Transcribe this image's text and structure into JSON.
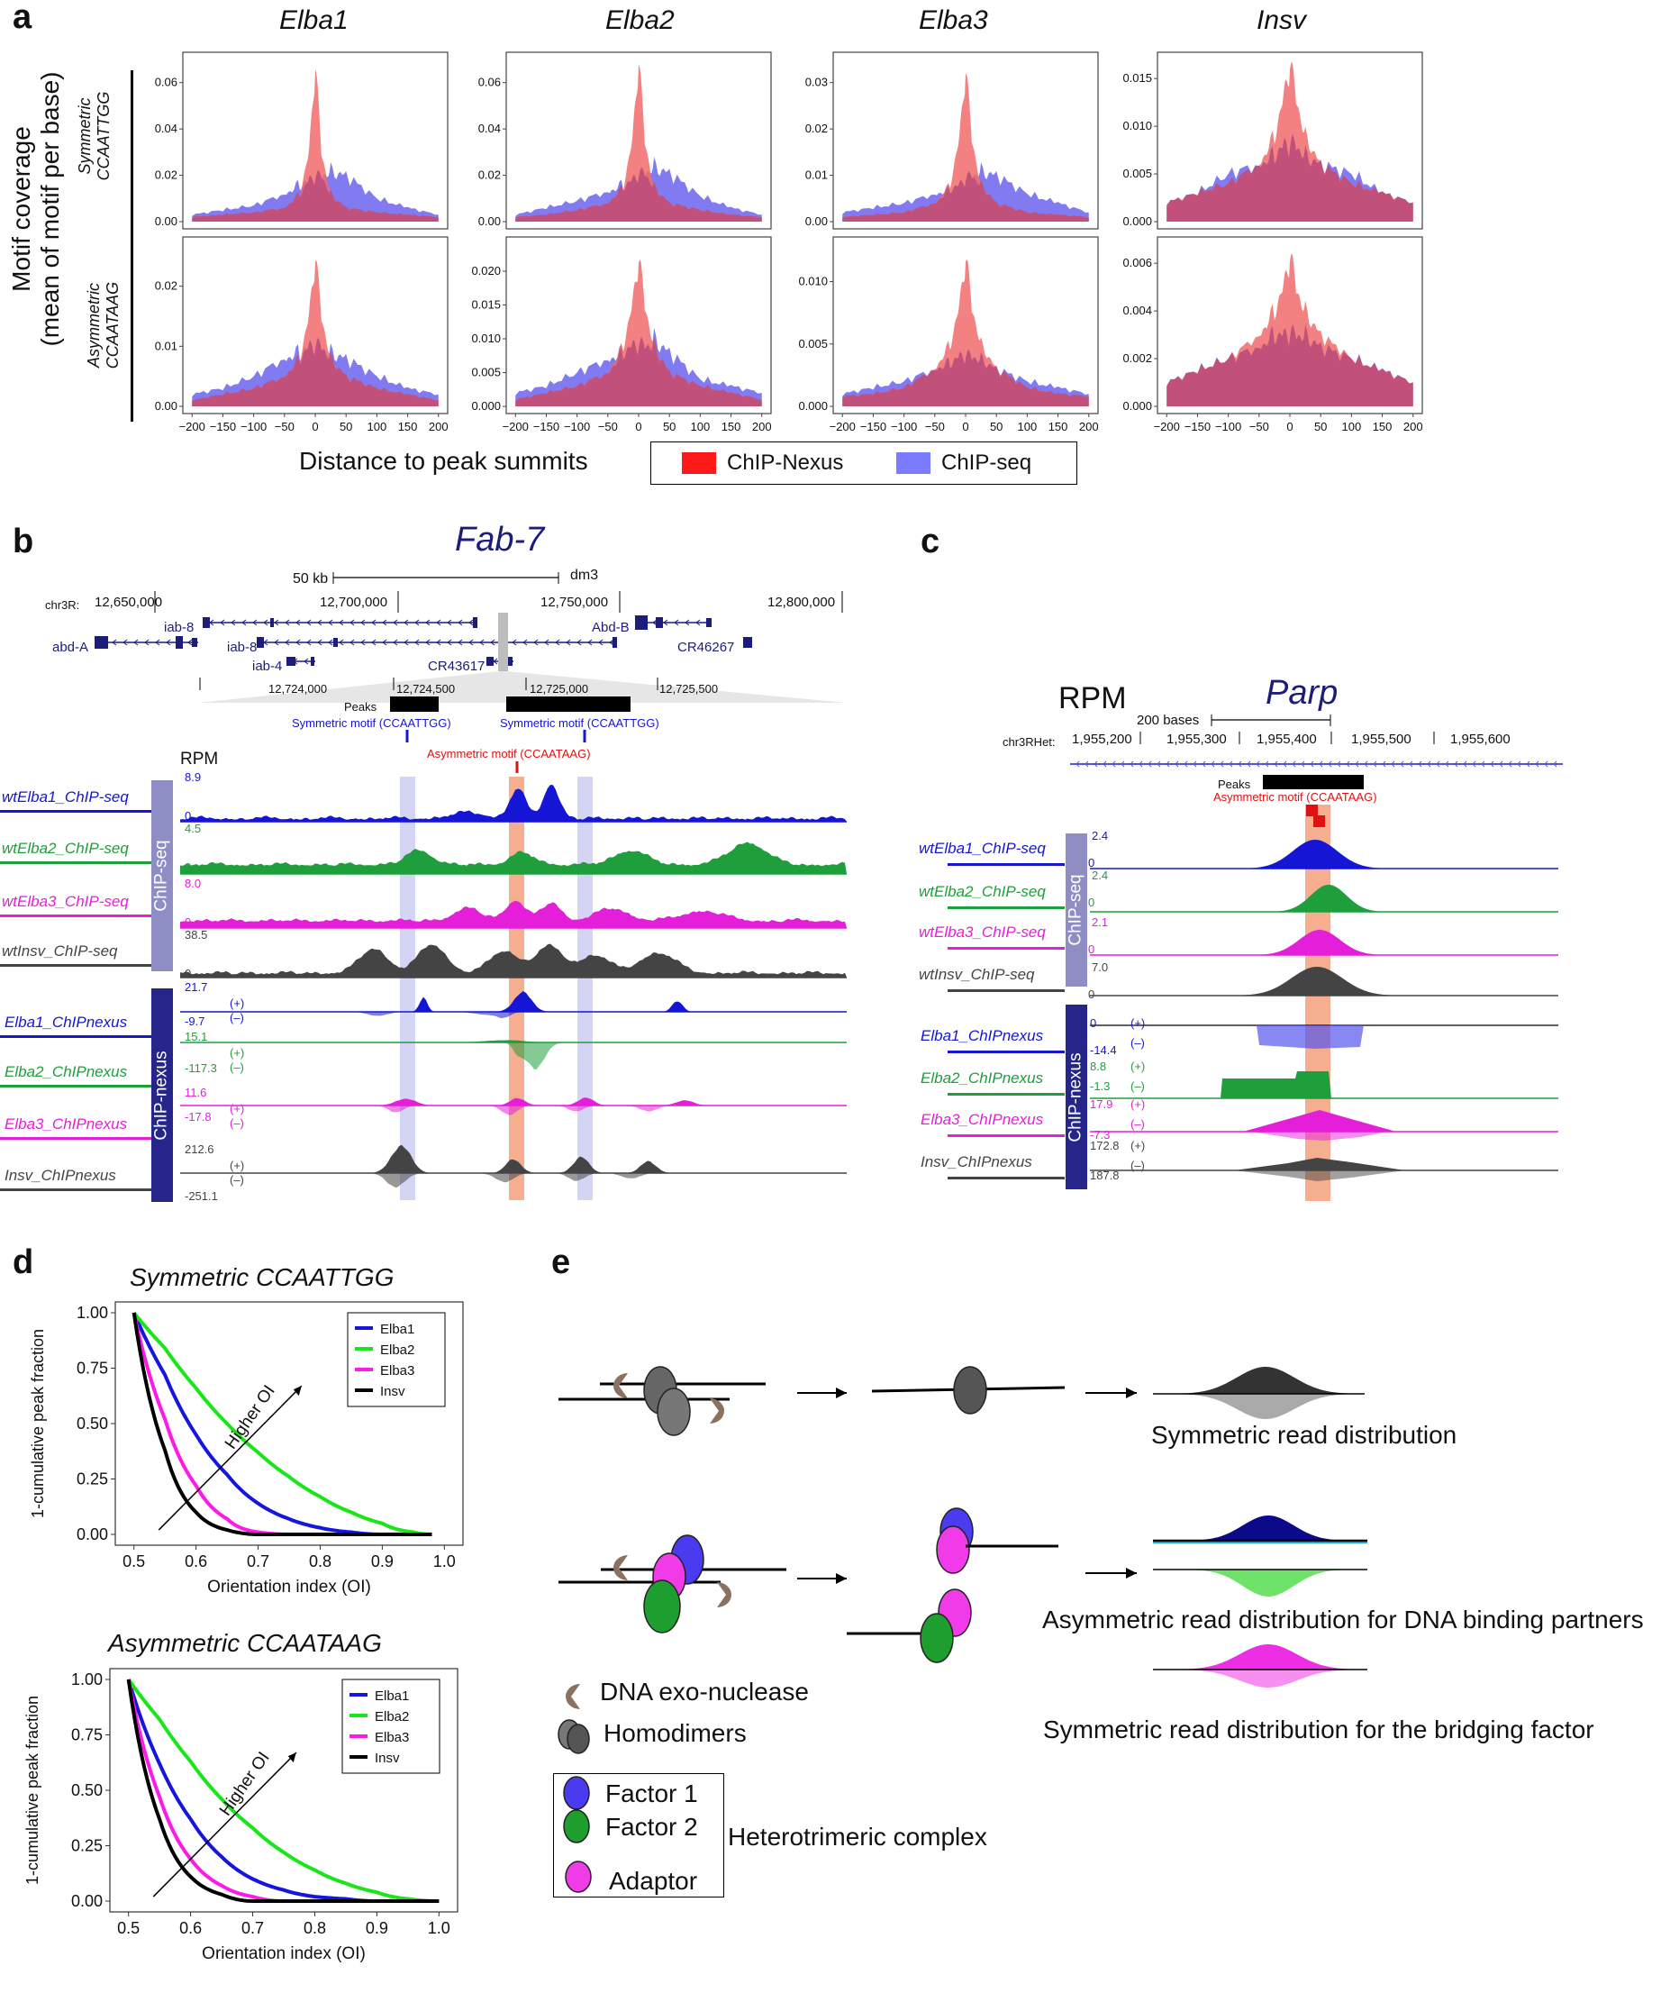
{
  "panel_a": {
    "letter": "a",
    "ylabel_line1": "Motif coverage",
    "ylabel_line2": "(mean of motif per base)",
    "row_labels": [
      [
        "Symmetric",
        "CCAATTGG"
      ],
      [
        "Asymmetric",
        "CCAATAAG"
      ]
    ],
    "xlabel": "Distance to peak summits",
    "legend": [
      {
        "name": "ChIP-Nexus",
        "color": "#ff1a1a"
      },
      {
        "name": "ChIP-seq",
        "color": "#7b7bff"
      }
    ],
    "xticks": [
      "-200",
      "-150",
      "-100",
      "-50",
      "0",
      "50",
      "100",
      "150",
      "200"
    ],
    "colors": {
      "nexus_fill": "#f26b6b",
      "seq_fill": "#7b73ef",
      "overlap": "#a83a79"
    }
  },
  "panel_b": {
    "letter": "b",
    "gene_title": "Fab-7",
    "scale_label": "50 kb",
    "assembly": "dm3",
    "chrom": "chr3R:",
    "coords": [
      "12,650,000",
      "12,700,000",
      "12,750,000",
      "12,800,000"
    ],
    "genes": [
      "iab-8",
      "abd-A",
      "iab-8",
      "iab-4",
      "CR43617",
      "Abd-B",
      "CR46267"
    ],
    "zoom_coords": [
      "12,724,000",
      "12,724,500",
      "12,725,000",
      "12,725,500"
    ],
    "peaks_label": "Peaks",
    "sym_motif": "Symmetric motif (CCAATTGG)",
    "sym_motif2": "Symmetric motif (CCAATTGG)",
    "asym_motif": "Asymmetric motif (CCAATAAG)",
    "rpm": "RPM",
    "chipseq_bar": "ChIP-seq",
    "chipnexus_bar": "ChIP-nexus",
    "seq_tracks": [
      {
        "name": "wtElba1_ChIP-seq",
        "max": "8.9",
        "zero": "0",
        "color": "#1515d6"
      },
      {
        "name": "wtElba2_ChIP-seq",
        "max": "4.5",
        "zero": "0",
        "color": "#1f9e3c"
      },
      {
        "name": "wtElba3_ChIP-seq",
        "max": "8.0",
        "zero": "0",
        "color": "#e51ed9"
      },
      {
        "name": "wtInsv_ChIP-seq",
        "max": "38.5",
        "zero": "0",
        "color": "#444444"
      }
    ],
    "nexus_tracks": [
      {
        "name": "Elba1_ChIPnexus",
        "max": "21.7",
        "min": "-9.7",
        "color": "#1515d6"
      },
      {
        "name": "Elba2_ChIPnexus",
        "max": "15.1",
        "min": "-117.3",
        "color": "#1f9e3c"
      },
      {
        "name": "Elba3_ChIPnexus",
        "max": "11.6",
        "min": "-17.8",
        "color": "#e51ed9"
      },
      {
        "name": "Insv_ChIPnexus",
        "max": "212.6",
        "min": "-251.1",
        "color": "#444444"
      }
    ],
    "plus": "(+)",
    "minus": "(–)"
  },
  "panel_c": {
    "letter": "c",
    "rpm": "RPM",
    "gene_title": "Parp",
    "scale_label": "200 bases",
    "chrom": "chr3RHet:",
    "coords": [
      "1,955,200",
      "1,955,300",
      "1,955,400",
      "1,955,500",
      "1,955,600"
    ],
    "peaks_label": "Peaks",
    "asym_motif": "Asymmetric motif (CCAATAAG)",
    "chipseq_bar": "ChIP-seq",
    "chipnexus_bar": "ChIP-nexus",
    "seq_tracks": [
      {
        "name": "wtElba1_ChIP-seq",
        "max": "2.4",
        "zero": "0",
        "color": "#1515d6"
      },
      {
        "name": "wtElba2_ChIP-seq",
        "max": "2.4",
        "zero": "0",
        "color": "#1f9e3c"
      },
      {
        "name": "wtElba3_ChIP-seq",
        "max": "2.1",
        "zero": "0",
        "color": "#e51ed9"
      },
      {
        "name": "wtInsv_ChIP-seq",
        "max": "7.0",
        "zero": "0",
        "color": "#444444"
      }
    ],
    "nexus_tracks": [
      {
        "name": "Elba1_ChIPnexus",
        "max": "0",
        "min": "-14.4",
        "color": "#1515d6"
      },
      {
        "name": "Elba2_ChIPnexus",
        "max": "8.8",
        "min": "-1.3",
        "color": "#1f9e3c"
      },
      {
        "name": "Elba3_ChIPnexus",
        "max": "17.9",
        "min": "-7.3",
        "color": "#e51ed9"
      },
      {
        "name": "Insv_ChIPnexus",
        "max": "172.8",
        "min": "187.8",
        "color": "#444444"
      }
    ],
    "plus": "(+)",
    "minus": "(–)"
  },
  "panel_d": {
    "letter": "d",
    "ylabel": "1-cumulative peak fraction",
    "xlabel": "Orientation index (OI)",
    "arrow_label": "Higher OI",
    "xticks": [
      "0.5",
      "0.6",
      "0.7",
      "0.8",
      "0.9",
      "1.0"
    ],
    "yticks": [
      "0.00",
      "0.25",
      "0.50",
      "0.75",
      "1.00"
    ],
    "legend": [
      {
        "name": "Elba1",
        "color": "#1515e0"
      },
      {
        "name": "Elba2",
        "color": "#19e619"
      },
      {
        "name": "Elba3",
        "color": "#ff19e6"
      },
      {
        "name": "Insv",
        "color": "#000000"
      }
    ]
  },
  "panel_e": {
    "letter": "e",
    "sym_text": "Symmetric read distribution",
    "asym_text": "Asymmetric read distribution for DNA binding partners",
    "bridge_text": "Symmetric read distribution for the bridging factor",
    "exo_label": "DNA exo-nuclease",
    "homo_label": "Homodimers",
    "factor1": "Factor 1",
    "factor2": "Factor 2",
    "adaptor": "Adaptor",
    "complex": "Heterotrimeric complex"
  },
  "chart_data": [
    {
      "type": "area",
      "title": "Elba1",
      "row": "Symmetric CCAATTGG",
      "ylim": [
        0,
        0.07
      ],
      "yticks": [
        "0.00",
        "0.02",
        "0.04",
        "0.06"
      ],
      "x": [
        -200,
        -150,
        -100,
        -50,
        -25,
        -10,
        0,
        10,
        25,
        50,
        100,
        150,
        200
      ],
      "series": [
        {
          "name": "ChIP-Nexus",
          "values": [
            0.002,
            0.003,
            0.004,
            0.006,
            0.012,
            0.03,
            0.068,
            0.03,
            0.012,
            0.006,
            0.004,
            0.003,
            0.002
          ]
        },
        {
          "name": "ChIP-seq",
          "values": [
            0.003,
            0.005,
            0.007,
            0.012,
            0.016,
            0.018,
            0.019,
            0.02,
            0.022,
            0.02,
            0.01,
            0.006,
            0.003
          ]
        }
      ]
    },
    {
      "type": "area",
      "title": "Elba2",
      "row": "Symmetric CCAATTGG",
      "ylim": [
        0,
        0.07
      ],
      "yticks": [
        "0.00",
        "0.02",
        "0.04",
        "0.06"
      ],
      "x": [
        -200,
        -150,
        -100,
        -50,
        -25,
        -10,
        0,
        10,
        25,
        50,
        100,
        150,
        200
      ],
      "series": [
        {
          "name": "ChIP-Nexus",
          "values": [
            0.002,
            0.003,
            0.005,
            0.008,
            0.015,
            0.035,
            0.07,
            0.035,
            0.015,
            0.008,
            0.005,
            0.003,
            0.002
          ]
        },
        {
          "name": "ChIP-seq",
          "values": [
            0.003,
            0.006,
            0.009,
            0.013,
            0.016,
            0.018,
            0.02,
            0.021,
            0.024,
            0.021,
            0.011,
            0.006,
            0.003
          ]
        }
      ]
    },
    {
      "type": "area",
      "title": "Elba3",
      "row": "Symmetric CCAATTGG",
      "ylim": [
        0,
        0.035
      ],
      "yticks": [
        "0.00",
        "0.01",
        "0.02",
        "0.03"
      ],
      "x": [
        -200,
        -150,
        -100,
        -50,
        -25,
        -10,
        0,
        10,
        25,
        50,
        100,
        150,
        200
      ],
      "series": [
        {
          "name": "ChIP-Nexus",
          "values": [
            0.001,
            0.0015,
            0.002,
            0.004,
            0.008,
            0.018,
            0.033,
            0.018,
            0.008,
            0.004,
            0.002,
            0.0015,
            0.001
          ]
        },
        {
          "name": "ChIP-seq",
          "values": [
            0.002,
            0.003,
            0.004,
            0.006,
            0.007,
            0.008,
            0.009,
            0.01,
            0.011,
            0.01,
            0.006,
            0.004,
            0.002
          ]
        }
      ]
    },
    {
      "type": "area",
      "title": "Insv",
      "row": "Symmetric CCAATTGG",
      "ylim": [
        0,
        0.017
      ],
      "yticks": [
        "0.000",
        "0.005",
        "0.010",
        "0.015"
      ],
      "x": [
        -200,
        -150,
        -100,
        -50,
        -25,
        -10,
        0,
        10,
        25,
        50,
        100,
        150,
        200
      ],
      "series": [
        {
          "name": "ChIP-Nexus",
          "values": [
            0.002,
            0.003,
            0.004,
            0.006,
            0.009,
            0.013,
            0.0165,
            0.013,
            0.009,
            0.006,
            0.004,
            0.003,
            0.002
          ]
        },
        {
          "name": "ChIP-seq",
          "values": [
            0.002,
            0.003,
            0.005,
            0.006,
            0.007,
            0.008,
            0.008,
            0.008,
            0.007,
            0.006,
            0.005,
            0.003,
            0.002
          ]
        }
      ]
    },
    {
      "type": "area",
      "title": "Elba1",
      "row": "Asymmetric CCAATAAG",
      "ylim": [
        0,
        0.027
      ],
      "yticks": [
        "0.00",
        "0.01",
        "0.02"
      ],
      "x": [
        -200,
        -150,
        -100,
        -50,
        -25,
        -10,
        0,
        10,
        25,
        50,
        100,
        150,
        200
      ],
      "series": [
        {
          "name": "ChIP-Nexus",
          "values": [
            0.001,
            0.002,
            0.003,
            0.005,
            0.008,
            0.015,
            0.025,
            0.015,
            0.008,
            0.005,
            0.003,
            0.002,
            0.001
          ]
        },
        {
          "name": "ChIP-seq",
          "values": [
            0.002,
            0.003,
            0.005,
            0.008,
            0.009,
            0.01,
            0.01,
            0.01,
            0.009,
            0.008,
            0.005,
            0.003,
            0.002
          ]
        }
      ]
    },
    {
      "type": "area",
      "title": "Elba2",
      "row": "Asymmetric CCAATAAG",
      "ylim": [
        0,
        0.024
      ],
      "yticks": [
        "0.000",
        "0.005",
        "0.010",
        "0.015",
        "0.020"
      ],
      "x": [
        -200,
        -150,
        -100,
        -50,
        -25,
        -10,
        0,
        10,
        25,
        50,
        100,
        150,
        200
      ],
      "series": [
        {
          "name": "ChIP-Nexus",
          "values": [
            0.001,
            0.002,
            0.003,
            0.005,
            0.009,
            0.015,
            0.022,
            0.015,
            0.009,
            0.005,
            0.003,
            0.002,
            0.001
          ]
        },
        {
          "name": "ChIP-seq",
          "values": [
            0.002,
            0.003,
            0.005,
            0.007,
            0.008,
            0.009,
            0.009,
            0.009,
            0.01,
            0.008,
            0.004,
            0.003,
            0.002
          ]
        }
      ]
    },
    {
      "type": "area",
      "title": "Elba3",
      "row": "Asymmetric CCAATAAG",
      "ylim": [
        0,
        0.013
      ],
      "yticks": [
        "0.000",
        "0.005",
        "0.010"
      ],
      "x": [
        -200,
        -150,
        -100,
        -50,
        -25,
        -10,
        0,
        10,
        25,
        50,
        100,
        150,
        200
      ],
      "series": [
        {
          "name": "ChIP-Nexus",
          "values": [
            0.0008,
            0.001,
            0.0015,
            0.003,
            0.005,
            0.008,
            0.012,
            0.008,
            0.005,
            0.003,
            0.0015,
            0.001,
            0.0008
          ]
        },
        {
          "name": "ChIP-seq",
          "values": [
            0.001,
            0.0015,
            0.002,
            0.003,
            0.0035,
            0.004,
            0.004,
            0.004,
            0.0038,
            0.003,
            0.002,
            0.0015,
            0.001
          ]
        }
      ]
    },
    {
      "type": "area",
      "title": "Insv",
      "row": "Asymmetric CCAATAAG",
      "ylim": [
        0,
        0.0068
      ],
      "yticks": [
        "0.000",
        "0.002",
        "0.004",
        "0.006"
      ],
      "x": [
        -200,
        -150,
        -100,
        -50,
        -25,
        -10,
        0,
        10,
        25,
        50,
        100,
        150,
        200
      ],
      "series": [
        {
          "name": "ChIP-Nexus",
          "values": [
            0.001,
            0.0015,
            0.002,
            0.003,
            0.004,
            0.005,
            0.0063,
            0.005,
            0.004,
            0.003,
            0.002,
            0.0015,
            0.001
          ]
        },
        {
          "name": "ChIP-seq",
          "values": [
            0.001,
            0.0015,
            0.002,
            0.0025,
            0.003,
            0.003,
            0.003,
            0.003,
            0.003,
            0.0025,
            0.002,
            0.0015,
            0.001
          ]
        }
      ]
    },
    {
      "type": "line",
      "title": "Symmetric CCAATTGG",
      "xlabel": "Orientation index (OI)",
      "ylabel": "1-cumulative peak fraction",
      "xlim": [
        0.5,
        1.0
      ],
      "ylim": [
        0,
        1.0
      ],
      "x": [
        0.5,
        0.55,
        0.6,
        0.65,
        0.7,
        0.75,
        0.8,
        0.85,
        0.9,
        0.95,
        0.98
      ],
      "series": [
        {
          "name": "Elba1",
          "values": [
            1.0,
            0.72,
            0.45,
            0.27,
            0.14,
            0.07,
            0.03,
            0.01,
            0.0,
            0.0,
            0.0
          ]
        },
        {
          "name": "Elba2",
          "values": [
            1.0,
            0.84,
            0.66,
            0.5,
            0.37,
            0.26,
            0.17,
            0.1,
            0.05,
            0.01,
            0.0
          ]
        },
        {
          "name": "Elba3",
          "values": [
            1.0,
            0.52,
            0.22,
            0.07,
            0.01,
            0.0,
            0.0,
            0.0,
            0.0,
            0.0,
            0.0
          ]
        },
        {
          "name": "Insv",
          "values": [
            1.0,
            0.38,
            0.1,
            0.02,
            0.0,
            0.0,
            0.0,
            0.0,
            0.0,
            0.0,
            0.0
          ]
        }
      ]
    },
    {
      "type": "line",
      "title": "Asymmetric CCAATAAG",
      "xlabel": "Orientation index (OI)",
      "ylabel": "1-cumulative peak fraction",
      "xlim": [
        0.5,
        1.0
      ],
      "ylim": [
        0,
        1.0
      ],
      "x": [
        0.5,
        0.55,
        0.6,
        0.65,
        0.7,
        0.75,
        0.8,
        0.85,
        0.9,
        0.95,
        1.0
      ],
      "series": [
        {
          "name": "Elba1",
          "values": [
            1.0,
            0.62,
            0.37,
            0.2,
            0.1,
            0.05,
            0.02,
            0.01,
            0.0,
            0.0,
            0.0
          ]
        },
        {
          "name": "Elba2",
          "values": [
            1.0,
            0.82,
            0.63,
            0.46,
            0.33,
            0.22,
            0.14,
            0.08,
            0.04,
            0.01,
            0.0
          ]
        },
        {
          "name": "Elba3",
          "values": [
            1.0,
            0.47,
            0.19,
            0.07,
            0.02,
            0.0,
            0.0,
            0.0,
            0.0,
            0.0,
            0.0
          ]
        },
        {
          "name": "Insv",
          "values": [
            1.0,
            0.37,
            0.11,
            0.03,
            0.0,
            0.0,
            0.0,
            0.0,
            0.0,
            0.0,
            0.0
          ]
        }
      ]
    }
  ]
}
